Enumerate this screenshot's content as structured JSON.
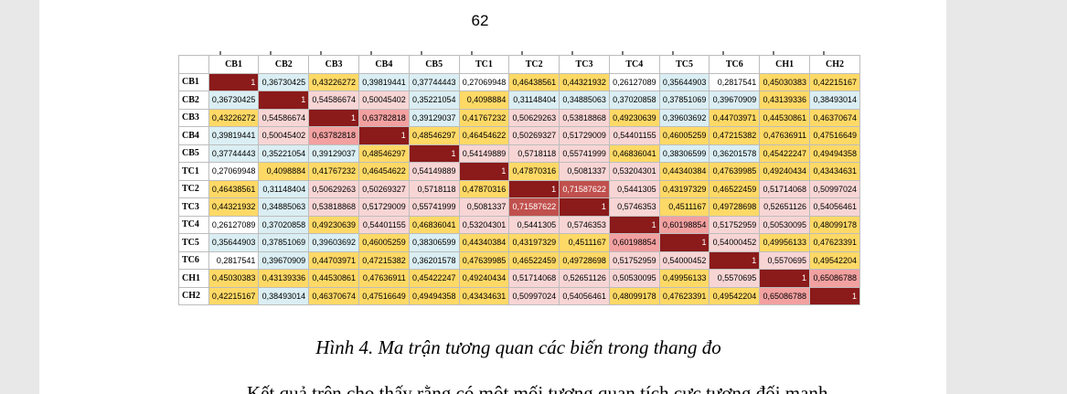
{
  "page_number": "62",
  "table": {
    "headers": [
      "CB1",
      "CB2",
      "CB3",
      "CB4",
      "CB5",
      "TC1",
      "TC2",
      "TC3",
      "TC4",
      "TC5",
      "TC6",
      "CH1",
      "CH2"
    ],
    "rows": [
      {
        "label": "CB1",
        "values": [
          "1",
          "0,36730425",
          "0,43226272",
          "0,39819441",
          "0,37744443",
          "0,27069948",
          "0,46438561",
          "0,44321932",
          "0,26127089",
          "0,35644903",
          "0,2817541",
          "0,45030383",
          "0,42215167"
        ]
      },
      {
        "label": "CB2",
        "values": [
          "0,36730425",
          "1",
          "0,54586674",
          "0,50045402",
          "0,35221054",
          "0,4098884",
          "0,31148404",
          "0,34885063",
          "0,37020858",
          "0,37851069",
          "0,39670909",
          "0,43139336",
          "0,38493014"
        ]
      },
      {
        "label": "CB3",
        "values": [
          "0,43226272",
          "0,54586674",
          "1",
          "0,63782818",
          "0,39129037",
          "0,41767232",
          "0,50629263",
          "0,53818868",
          "0,49230639",
          "0,39603692",
          "0,44703971",
          "0,44530861",
          "0,46370674"
        ]
      },
      {
        "label": "CB4",
        "values": [
          "0,39819441",
          "0,50045402",
          "0,63782818",
          "1",
          "0,48546297",
          "0,46454622",
          "0,50269327",
          "0,51729009",
          "0,54401155",
          "0,46005259",
          "0,47215382",
          "0,47636911",
          "0,47516649"
        ]
      },
      {
        "label": "CB5",
        "values": [
          "0,37744443",
          "0,35221054",
          "0,39129037",
          "0,48546297",
          "1",
          "0,54149889",
          "0,5718118",
          "0,55741999",
          "0,46836041",
          "0,38306599",
          "0,36201578",
          "0,45422247",
          "0,49494358"
        ]
      },
      {
        "label": "TC1",
        "values": [
          "0,27069948",
          "0,4098884",
          "0,41767232",
          "0,46454622",
          "0,54149889",
          "1",
          "0,47870316",
          "0,5081337",
          "0,53204301",
          "0,44340384",
          "0,47639985",
          "0,49240434",
          "0,43434631"
        ]
      },
      {
        "label": "TC2",
        "values": [
          "0,46438561",
          "0,31148404",
          "0,50629263",
          "0,50269327",
          "0,5718118",
          "0,47870316",
          "1",
          "0,71587622",
          "0,5441305",
          "0,43197329",
          "0,46522459",
          "0,51714068",
          "0,50997024"
        ]
      },
      {
        "label": "TC3",
        "values": [
          "0,44321932",
          "0,34885063",
          "0,53818868",
          "0,51729009",
          "0,55741999",
          "0,5081337",
          "0,71587622",
          "1",
          "0,5746353",
          "0,4511167",
          "0,49728698",
          "0,52651126",
          "0,54056461"
        ]
      },
      {
        "label": "TC4",
        "values": [
          "0,26127089",
          "0,37020858",
          "0,49230639",
          "0,54401155",
          "0,46836041",
          "0,53204301",
          "0,5441305",
          "0,5746353",
          "1",
          "0,60198854",
          "0,51752959",
          "0,50530095",
          "0,48099178"
        ]
      },
      {
        "label": "TC5",
        "values": [
          "0,35644903",
          "0,37851069",
          "0,39603692",
          "0,46005259",
          "0,38306599",
          "0,44340384",
          "0,43197329",
          "0,4511167",
          "0,60198854",
          "1",
          "0,54000452",
          "0,49956133",
          "0,47623391"
        ]
      },
      {
        "label": "TC6",
        "values": [
          "0,2817541",
          "0,39670909",
          "0,44703971",
          "0,47215382",
          "0,36201578",
          "0,47639985",
          "0,46522459",
          "0,49728698",
          "0,51752959",
          "0,54000452",
          "1",
          "0,5570695",
          "0,49542204"
        ]
      },
      {
        "label": "CH1",
        "values": [
          "0,45030383",
          "0,43139336",
          "0,44530861",
          "0,47636911",
          "0,45422247",
          "0,49240434",
          "0,51714068",
          "0,52651126",
          "0,50530095",
          "0,49956133",
          "0,5570695",
          "1",
          "0,65086788"
        ]
      },
      {
        "label": "CH2",
        "values": [
          "0,42215167",
          "0,38493014",
          "0,46370674",
          "0,47516649",
          "0,49494358",
          "0,43434631",
          "0,50997024",
          "0,54056461",
          "0,48099178",
          "0,47623391",
          "0,49542204",
          "0,65086788",
          "1"
        ]
      }
    ]
  },
  "colors": {
    "diagonal": "#8b1a1a",
    "strong": "#c0504d",
    "high": "#f2a0a0",
    "above_mid": "#f8d5d5",
    "mid": "#ffd966",
    "low": "#daeef3",
    "lowest": "#ffffff"
  },
  "caption": "Hình 4. Ma trận tương quan các biến trong thang đo",
  "body_text": "Kết quả trên cho thấy rằng có một mối tương quan tích cực tương đối mạnh"
}
